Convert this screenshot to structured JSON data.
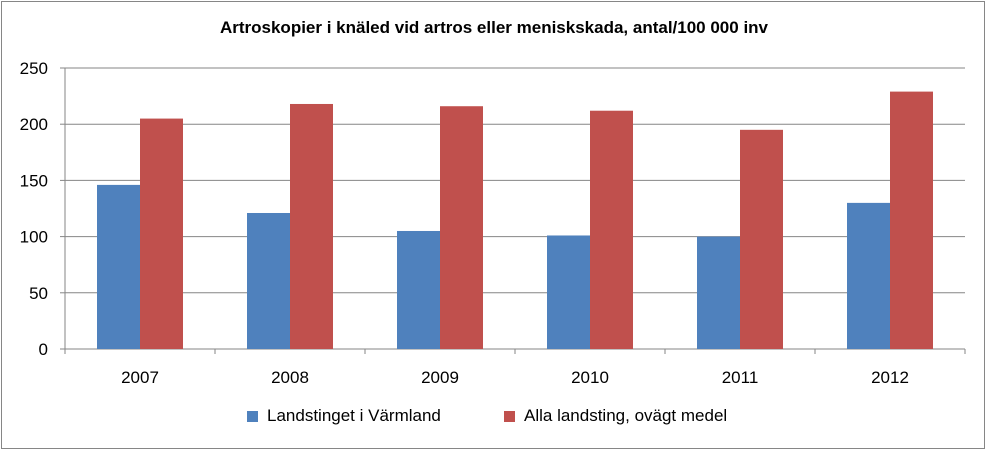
{
  "chart_data": {
    "type": "bar",
    "title": "Artroskopier i knäled vid artros eller meniskskada, antal/100 000 inv",
    "categories": [
      "2007",
      "2008",
      "2009",
      "2010",
      "2011",
      "2012"
    ],
    "series": [
      {
        "name": "Landstinget i Värmland",
        "color": "#4F81BD",
        "values": [
          146,
          121,
          105,
          101,
          100,
          130
        ]
      },
      {
        "name": "Alla landsting, ovägt medel",
        "color": "#C0504D",
        "values": [
          205,
          218,
          216,
          212,
          195,
          229
        ]
      }
    ],
    "ylim": [
      0,
      250
    ],
    "yticks": [
      0,
      50,
      100,
      150,
      200,
      250
    ],
    "grid": true,
    "legend": "bottom"
  }
}
